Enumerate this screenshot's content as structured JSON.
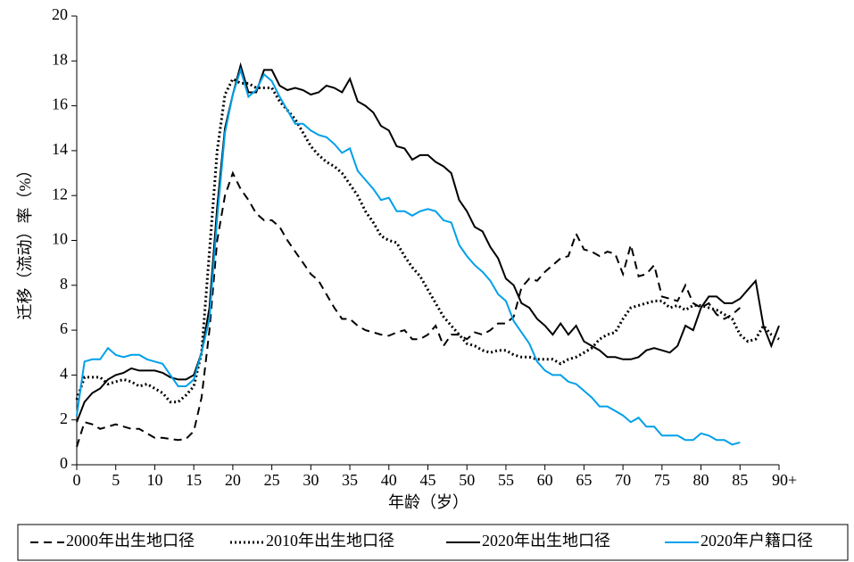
{
  "chart_data": {
    "type": "line",
    "x": [
      0,
      1,
      2,
      3,
      4,
      5,
      6,
      7,
      8,
      9,
      10,
      11,
      12,
      13,
      14,
      15,
      16,
      17,
      18,
      19,
      20,
      21,
      22,
      23,
      24,
      25,
      26,
      27,
      28,
      29,
      30,
      31,
      32,
      33,
      34,
      35,
      36,
      37,
      38,
      39,
      40,
      41,
      42,
      43,
      44,
      45,
      46,
      47,
      48,
      49,
      50,
      51,
      52,
      53,
      54,
      55,
      56,
      57,
      58,
      59,
      60,
      61,
      62,
      63,
      64,
      65,
      66,
      67,
      68,
      69,
      70,
      71,
      72,
      73,
      74,
      75,
      76,
      77,
      78,
      79,
      80,
      81,
      82,
      83,
      84,
      85,
      86,
      87,
      88,
      89,
      90
    ],
    "x_label": "年龄（岁）",
    "y_label": "迁移（流动）率（%）",
    "xlim": [
      0,
      90
    ],
    "xticks": [
      0,
      5,
      10,
      15,
      20,
      25,
      30,
      35,
      40,
      45,
      50,
      55,
      60,
      65,
      70,
      75,
      80,
      85,
      {
        "value": 90,
        "label": "90+"
      }
    ],
    "ylim": [
      0,
      20
    ],
    "yticks": [
      0,
      2,
      4,
      6,
      8,
      10,
      12,
      14,
      16,
      18,
      20
    ],
    "legend": "bottom",
    "series": [
      {
        "name": "2000年出生地口径",
        "color": "#000000",
        "dash": "dashed",
        "values": [
          0.8,
          1.9,
          1.8,
          1.6,
          1.7,
          1.8,
          1.7,
          1.6,
          1.6,
          1.4,
          1.2,
          1.2,
          1.15,
          1.1,
          1.15,
          1.5,
          3.0,
          6.0,
          10.0,
          12.0,
          13.0,
          12.3,
          11.8,
          11.2,
          10.9,
          10.9,
          10.6,
          10.0,
          9.5,
          9.0,
          8.5,
          8.2,
          7.6,
          7.0,
          6.5,
          6.5,
          6.2,
          6.0,
          5.9,
          5.8,
          5.75,
          5.9,
          6.0,
          5.6,
          5.6,
          5.8,
          6.2,
          5.3,
          5.8,
          5.8,
          5.6,
          5.9,
          5.8,
          6.0,
          6.3,
          6.3,
          6.6,
          7.9,
          8.3,
          8.2,
          8.6,
          8.9,
          9.2,
          9.3,
          10.3,
          9.6,
          9.5,
          9.3,
          9.5,
          9.4,
          8.5,
          9.8,
          8.4,
          8.5,
          8.9,
          7.5,
          7.4,
          7.3,
          8.0,
          7.2,
          7.0,
          7.2,
          6.7,
          6.5,
          6.7,
          7.0,
          null,
          null,
          null,
          null,
          null
        ]
      },
      {
        "name": "2010年出生地口径",
        "color": "#000000",
        "dash": "dotted",
        "values": [
          2.9,
          3.9,
          3.9,
          3.9,
          3.6,
          3.7,
          3.8,
          3.7,
          3.5,
          3.6,
          3.4,
          3.2,
          2.8,
          2.8,
          3.1,
          3.5,
          5.0,
          9.5,
          14.0,
          16.5,
          17.2,
          17.0,
          17.0,
          16.8,
          16.8,
          16.8,
          16.2,
          15.8,
          15.4,
          14.8,
          14.2,
          13.8,
          13.5,
          13.3,
          13.0,
          12.5,
          12.0,
          11.3,
          10.8,
          10.2,
          10.0,
          9.9,
          9.3,
          8.8,
          8.4,
          7.8,
          7.2,
          6.6,
          6.2,
          5.8,
          5.4,
          5.3,
          5.1,
          5.0,
          5.1,
          5.1,
          4.9,
          4.8,
          4.8,
          4.7,
          4.7,
          4.7,
          4.5,
          4.7,
          4.8,
          5.0,
          5.2,
          5.6,
          5.8,
          5.9,
          6.5,
          7.0,
          7.1,
          7.2,
          7.3,
          7.3,
          7.0,
          7.1,
          6.9,
          7.1,
          7.1,
          7.0,
          6.9,
          6.7,
          6.5,
          5.8,
          5.5,
          5.6,
          6.2,
          5.8,
          5.6
        ]
      },
      {
        "name": "2020年出生地口径",
        "color": "#000000",
        "dash": "solid",
        "values": [
          1.9,
          2.8,
          3.2,
          3.4,
          3.8,
          4.0,
          4.1,
          4.3,
          4.2,
          4.2,
          4.2,
          4.1,
          3.9,
          3.8,
          3.8,
          4.0,
          5.0,
          7.0,
          11.5,
          15.0,
          16.5,
          17.8,
          16.6,
          16.6,
          17.6,
          17.6,
          16.9,
          16.7,
          16.8,
          16.7,
          16.5,
          16.6,
          16.9,
          16.8,
          16.6,
          17.2,
          16.2,
          16.0,
          15.7,
          15.1,
          14.9,
          14.2,
          14.1,
          13.6,
          13.8,
          13.8,
          13.5,
          13.3,
          13.0,
          11.8,
          11.3,
          10.6,
          10.4,
          9.7,
          9.2,
          8.3,
          8.0,
          7.2,
          7.0,
          6.5,
          6.2,
          5.8,
          6.3,
          5.8,
          6.2,
          5.5,
          5.3,
          5.1,
          4.8,
          4.8,
          4.7,
          4.7,
          4.8,
          5.1,
          5.2,
          5.1,
          5.0,
          5.3,
          6.2,
          6.0,
          7.0,
          7.5,
          7.5,
          7.2,
          7.2,
          7.4,
          7.8,
          8.2,
          6.2,
          5.3,
          6.2
        ]
      },
      {
        "name": "2020年户籍口径",
        "color": "#00a0e9",
        "dash": "solid",
        "values": [
          2.2,
          4.6,
          4.7,
          4.7,
          5.2,
          4.9,
          4.8,
          4.9,
          4.9,
          4.7,
          4.6,
          4.5,
          4.0,
          3.5,
          3.5,
          3.8,
          5.0,
          6.5,
          11.0,
          14.8,
          16.5,
          17.6,
          16.4,
          16.7,
          17.4,
          17.1,
          16.4,
          15.8,
          15.2,
          15.2,
          14.9,
          14.7,
          14.6,
          14.3,
          13.9,
          14.1,
          13.1,
          12.7,
          12.3,
          11.8,
          11.9,
          11.3,
          11.3,
          11.1,
          11.3,
          11.4,
          11.3,
          10.9,
          10.8,
          9.8,
          9.3,
          8.9,
          8.6,
          8.2,
          7.6,
          7.3,
          6.4,
          5.9,
          5.4,
          4.6,
          4.2,
          4.0,
          4.0,
          3.7,
          3.6,
          3.3,
          3.0,
          2.6,
          2.6,
          2.4,
          2.2,
          1.9,
          2.1,
          1.7,
          1.7,
          1.3,
          1.3,
          1.3,
          1.1,
          1.1,
          1.4,
          1.3,
          1.1,
          1.1,
          0.9,
          1.0,
          null,
          null,
          null,
          null,
          null
        ]
      }
    ]
  }
}
